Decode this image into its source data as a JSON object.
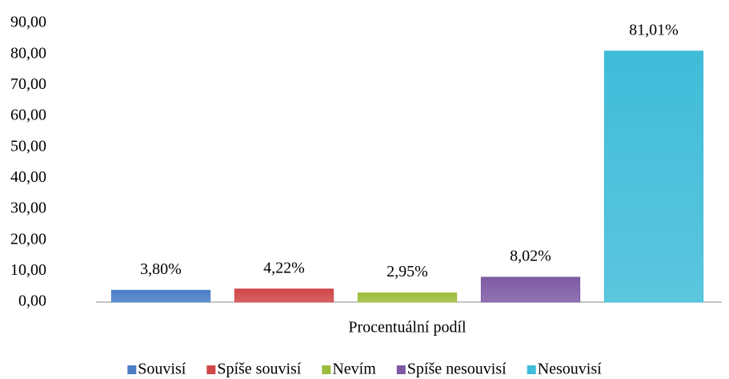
{
  "chart_data": {
    "type": "bar",
    "categories": [
      "Procentuální podíl"
    ],
    "series": [
      {
        "name": "Souvisí",
        "color": "#4a7ec6",
        "values": [
          3.8
        ],
        "value_labels": [
          "3,80%"
        ]
      },
      {
        "name": "Spíše souvisí",
        "color": "#d04747",
        "values": [
          4.22
        ],
        "value_labels": [
          "4,22%"
        ]
      },
      {
        "name": "Nevím",
        "color": "#9bbd3e",
        "values": [
          2.95
        ],
        "value_labels": [
          "2,95%"
        ]
      },
      {
        "name": "Spíše nesouvisí",
        "color": "#7d5aa3",
        "values": [
          8.02
        ],
        "value_labels": [
          "8,02%"
        ]
      },
      {
        "name": "Nesouvisí",
        "color": "#3fbcd9",
        "values": [
          81.01
        ],
        "value_labels": [
          "81,01%"
        ]
      }
    ],
    "ylim": [
      0,
      90
    ],
    "yticks": [
      {
        "value": 0,
        "label": "0,00"
      },
      {
        "value": 10,
        "label": "10,00"
      },
      {
        "value": 20,
        "label": "20,00"
      },
      {
        "value": 30,
        "label": "30,00"
      },
      {
        "value": 40,
        "label": "40,00"
      },
      {
        "value": 50,
        "label": "50,00"
      },
      {
        "value": 60,
        "label": "60,00"
      },
      {
        "value": 70,
        "label": "70,00"
      },
      {
        "value": 80,
        "label": "80,00"
      },
      {
        "value": 90,
        "label": "90,00"
      }
    ],
    "grid": false,
    "legend": "bottom"
  }
}
